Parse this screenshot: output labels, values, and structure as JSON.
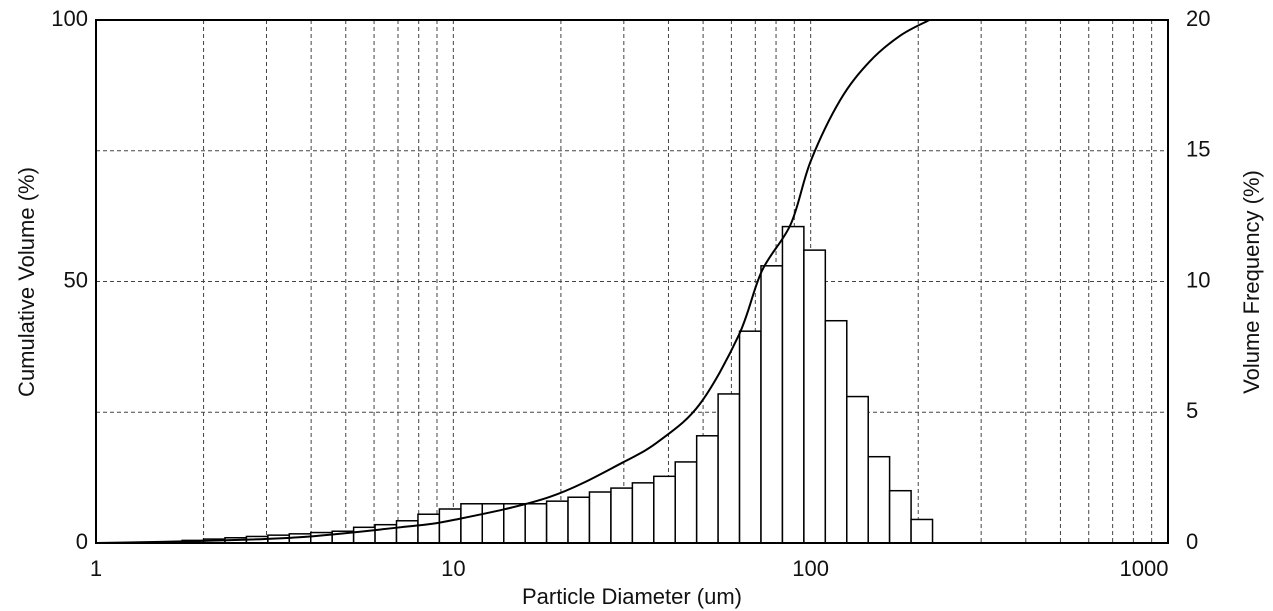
{
  "chart_data": {
    "type": "histogram",
    "xlabel": "Particle Diameter (um)",
    "ylabel": "Cumulative Volume (%)",
    "y2label": "Volume Frequency (%)",
    "xscale": "log",
    "xlim": [
      1,
      1000
    ],
    "xticks": [
      1,
      10,
      100,
      1000
    ],
    "xminor": [
      2,
      3,
      4,
      5,
      6,
      7,
      8,
      9,
      20,
      30,
      40,
      50,
      60,
      70,
      80,
      90,
      200,
      300,
      400,
      500,
      600,
      700,
      800,
      900
    ],
    "ylim": [
      0,
      100
    ],
    "yticks": [
      0,
      50,
      100
    ],
    "y2lim": [
      0,
      20
    ],
    "y2ticks": [
      0,
      5,
      10,
      15,
      20
    ],
    "grid": true,
    "bins": [
      1.742,
      2.0,
      2.296,
      2.636,
      3.027,
      3.475,
      3.99,
      4.581,
      5.26,
      6.039,
      6.934,
      7.962,
      9.141,
      10.5,
      12.05,
      13.84,
      15.89,
      18.24,
      20.94,
      24.04,
      27.61,
      31.7,
      36.39,
      41.78,
      47.97,
      55.08,
      63.24,
      72.61,
      83.37,
      95.72,
      109.9,
      126.2,
      144.9,
      166.3,
      191.0,
      219.3
    ],
    "series": [
      {
        "axis": "y2",
        "color": "#ffffff",
        "values": [
          0.1,
          0.15,
          0.2,
          0.25,
          0.3,
          0.35,
          0.4,
          0.45,
          0.6,
          0.7,
          0.85,
          1.1,
          1.3,
          1.5,
          1.5,
          1.5,
          1.5,
          1.6,
          1.75,
          1.95,
          2.1,
          2.3,
          2.55,
          3.1,
          4.1,
          5.7,
          8.1,
          10.6,
          12.1,
          11.2,
          8.5,
          5.6,
          3.3,
          2.0,
          0.9
        ]
      },
      {
        "type": "line",
        "color": "#000000",
        "x": [
          1,
          2,
          3.7,
          7.1,
          10,
          18.6,
          30,
          38,
          49,
          63,
          73,
          88,
          100,
          121,
          146,
          178,
          215
        ],
        "values": [
          0,
          0.4,
          1.1,
          3.0,
          4.4,
          8.8,
          15.5,
          19.7,
          26.6,
          39.8,
          52,
          61,
          73,
          84.7,
          92,
          97,
          100
        ]
      }
    ]
  }
}
